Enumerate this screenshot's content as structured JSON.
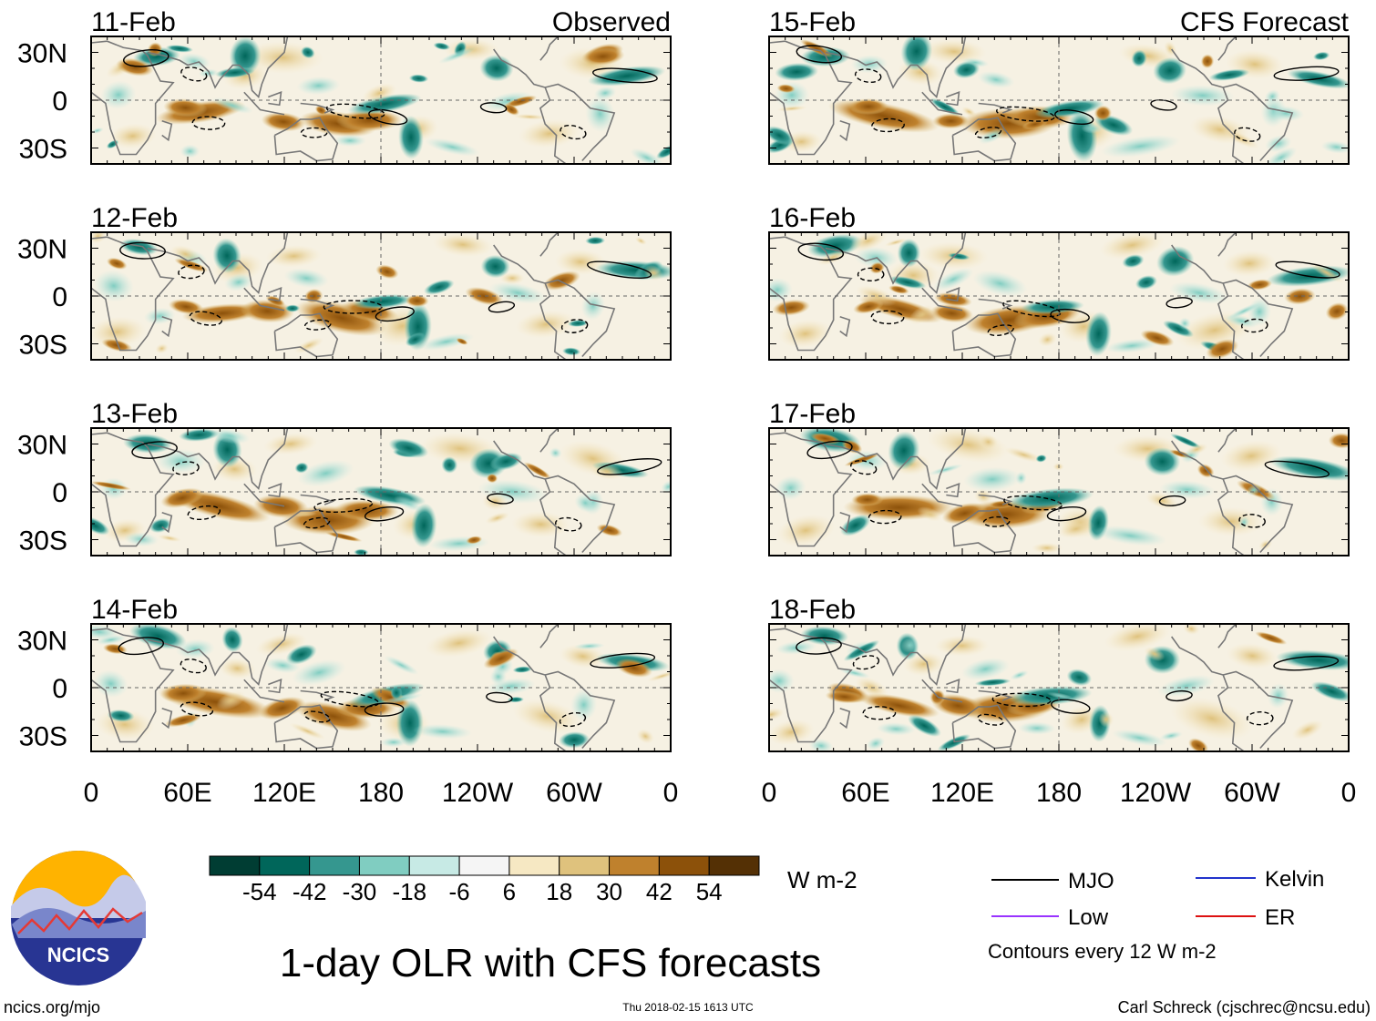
{
  "chart_data": {
    "type": "map-panels",
    "title": "1-day OLR with CFS forecasts",
    "columns": [
      {
        "header": "Observed",
        "dates": [
          "11-Feb",
          "12-Feb",
          "13-Feb",
          "14-Feb"
        ]
      },
      {
        "header": "CFS Forecast",
        "dates": [
          "15-Feb",
          "16-Feb",
          "17-Feb",
          "18-Feb"
        ]
      }
    ],
    "lat_ticks": [
      "30N",
      "0",
      "30S"
    ],
    "lat_values": [
      30,
      0,
      -30
    ],
    "lat_range": [
      -40,
      40
    ],
    "lon_ticks": [
      "0",
      "60E",
      "120E",
      "180",
      "120W",
      "60W",
      "0"
    ],
    "lon_values": [
      0,
      60,
      120,
      180,
      240,
      300,
      360
    ],
    "lon_range": [
      0,
      360
    ],
    "colorbar": {
      "tick_labels": [
        "-54",
        "-42",
        "-30",
        "-18",
        "-6",
        "6",
        "18",
        "30",
        "42",
        "54"
      ],
      "tick_values": [
        -54,
        -42,
        -30,
        -18,
        -6,
        6,
        18,
        30,
        42,
        54
      ],
      "colors": [
        "#003d33",
        "#00665a",
        "#35978f",
        "#80cdc1",
        "#c7eae5",
        "#f5f5f5",
        "#f6e8c3",
        "#dfc27d",
        "#bf812d",
        "#8c510a",
        "#543005"
      ],
      "units": "W m-2"
    },
    "legend": [
      {
        "label": "MJO",
        "color": "#000000"
      },
      {
        "label": "Kelvin",
        "color": "#2233cc"
      },
      {
        "label": "Low",
        "color": "#9933ff"
      },
      {
        "label": "ER",
        "color": "#dd1111"
      }
    ],
    "contour_note": "Contours every 12 W m-2"
  },
  "logo": {
    "text": "NCICS"
  },
  "footer": {
    "left": "ncics.org/mjo",
    "center": "Thu 2018-02-15 1613 UTC",
    "right": "Carl Schreck (cjschrec@ncsu.edu)"
  }
}
